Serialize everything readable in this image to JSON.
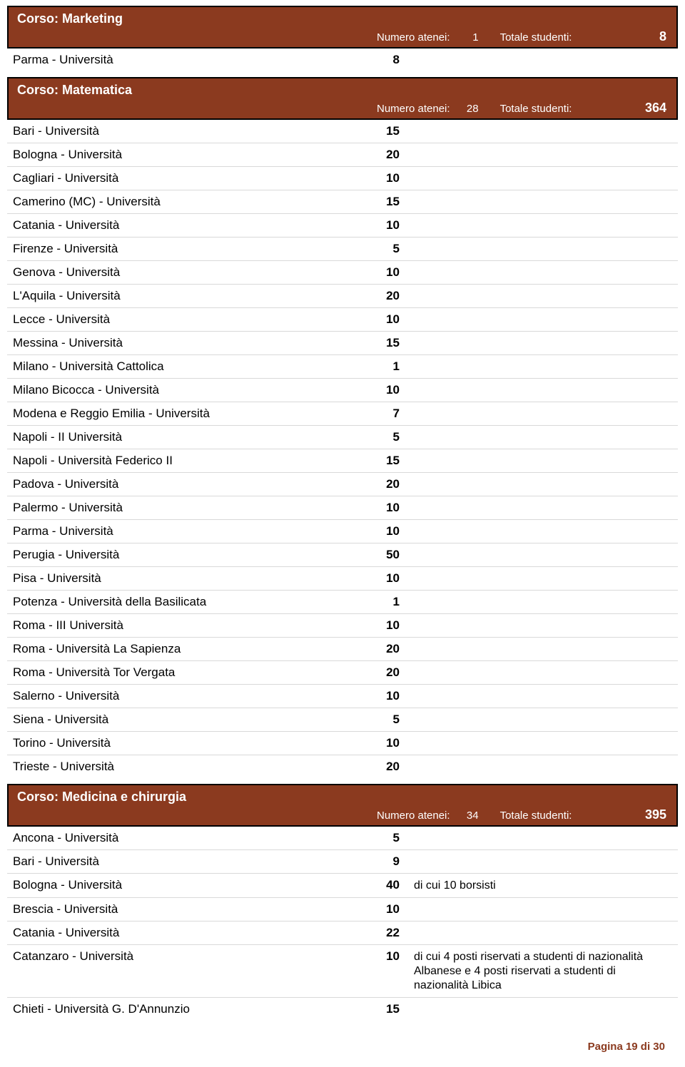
{
  "labels": {
    "numero_atenei": "Numero atenei:",
    "totale_studenti": "Totale studenti:"
  },
  "sections": [
    {
      "title": "Corso:  Marketing",
      "atenei": "1",
      "totale": "8",
      "rows": [
        {
          "name": "Parma - Università",
          "val": "8",
          "note": ""
        }
      ]
    },
    {
      "title": "Corso:  Matematica",
      "atenei": "28",
      "totale": "364",
      "rows": [
        {
          "name": "Bari - Università",
          "val": "15",
          "note": ""
        },
        {
          "name": "Bologna - Università",
          "val": "20",
          "note": ""
        },
        {
          "name": "Cagliari - Università",
          "val": "10",
          "note": ""
        },
        {
          "name": "Camerino (MC) - Università",
          "val": "15",
          "note": ""
        },
        {
          "name": "Catania - Università",
          "val": "10",
          "note": ""
        },
        {
          "name": "Firenze - Università",
          "val": "5",
          "note": ""
        },
        {
          "name": "Genova - Università",
          "val": "10",
          "note": ""
        },
        {
          "name": "L'Aquila - Università",
          "val": "20",
          "note": ""
        },
        {
          "name": "Lecce - Università",
          "val": "10",
          "note": ""
        },
        {
          "name": "Messina - Università",
          "val": "15",
          "note": ""
        },
        {
          "name": "Milano - Università Cattolica",
          "val": "1",
          "note": ""
        },
        {
          "name": "Milano Bicocca - Università",
          "val": "10",
          "note": ""
        },
        {
          "name": "Modena e Reggio Emilia - Università",
          "val": "7",
          "note": ""
        },
        {
          "name": "Napoli - II Università",
          "val": "5",
          "note": ""
        },
        {
          "name": "Napoli - Università Federico II",
          "val": "15",
          "note": ""
        },
        {
          "name": "Padova - Università",
          "val": "20",
          "note": ""
        },
        {
          "name": "Palermo - Università",
          "val": "10",
          "note": ""
        },
        {
          "name": "Parma - Università",
          "val": "10",
          "note": ""
        },
        {
          "name": "Perugia - Università",
          "val": "50",
          "note": ""
        },
        {
          "name": "Pisa - Università",
          "val": "10",
          "note": ""
        },
        {
          "name": "Potenza - Università della Basilicata",
          "val": "1",
          "note": ""
        },
        {
          "name": "Roma - III Università",
          "val": "10",
          "note": ""
        },
        {
          "name": "Roma - Università La Sapienza",
          "val": "20",
          "note": ""
        },
        {
          "name": "Roma - Università Tor Vergata",
          "val": "20",
          "note": ""
        },
        {
          "name": "Salerno - Università",
          "val": "10",
          "note": ""
        },
        {
          "name": "Siena - Università",
          "val": "5",
          "note": ""
        },
        {
          "name": "Torino - Università",
          "val": "10",
          "note": ""
        },
        {
          "name": "Trieste - Università",
          "val": "20",
          "note": ""
        }
      ]
    },
    {
      "title": "Corso:  Medicina e chirurgia",
      "atenei": "34",
      "totale": "395",
      "rows": [
        {
          "name": "Ancona - Università",
          "val": "5",
          "note": ""
        },
        {
          "name": "Bari - Università",
          "val": "9",
          "note": ""
        },
        {
          "name": "Bologna - Università",
          "val": "40",
          "note": "di cui 10 borsisti"
        },
        {
          "name": "Brescia - Università",
          "val": "10",
          "note": ""
        },
        {
          "name": "Catania - Università",
          "val": "22",
          "note": ""
        },
        {
          "name": "Catanzaro - Università",
          "val": "10",
          "note": "di cui 4 posti riservati a studenti di nazionalità Albanese e 4 posti riservati a studenti di nazionalità Libica"
        },
        {
          "name": "Chieti - Università G. D'Annunzio",
          "val": "15",
          "note": ""
        }
      ]
    }
  ],
  "footer": "Pagina 19 di 30",
  "colors": {
    "header_bg": "#8b3a1f",
    "header_text": "#ffffff",
    "row_border": "#d9d9d9",
    "footer_text": "#8b3a1f"
  }
}
